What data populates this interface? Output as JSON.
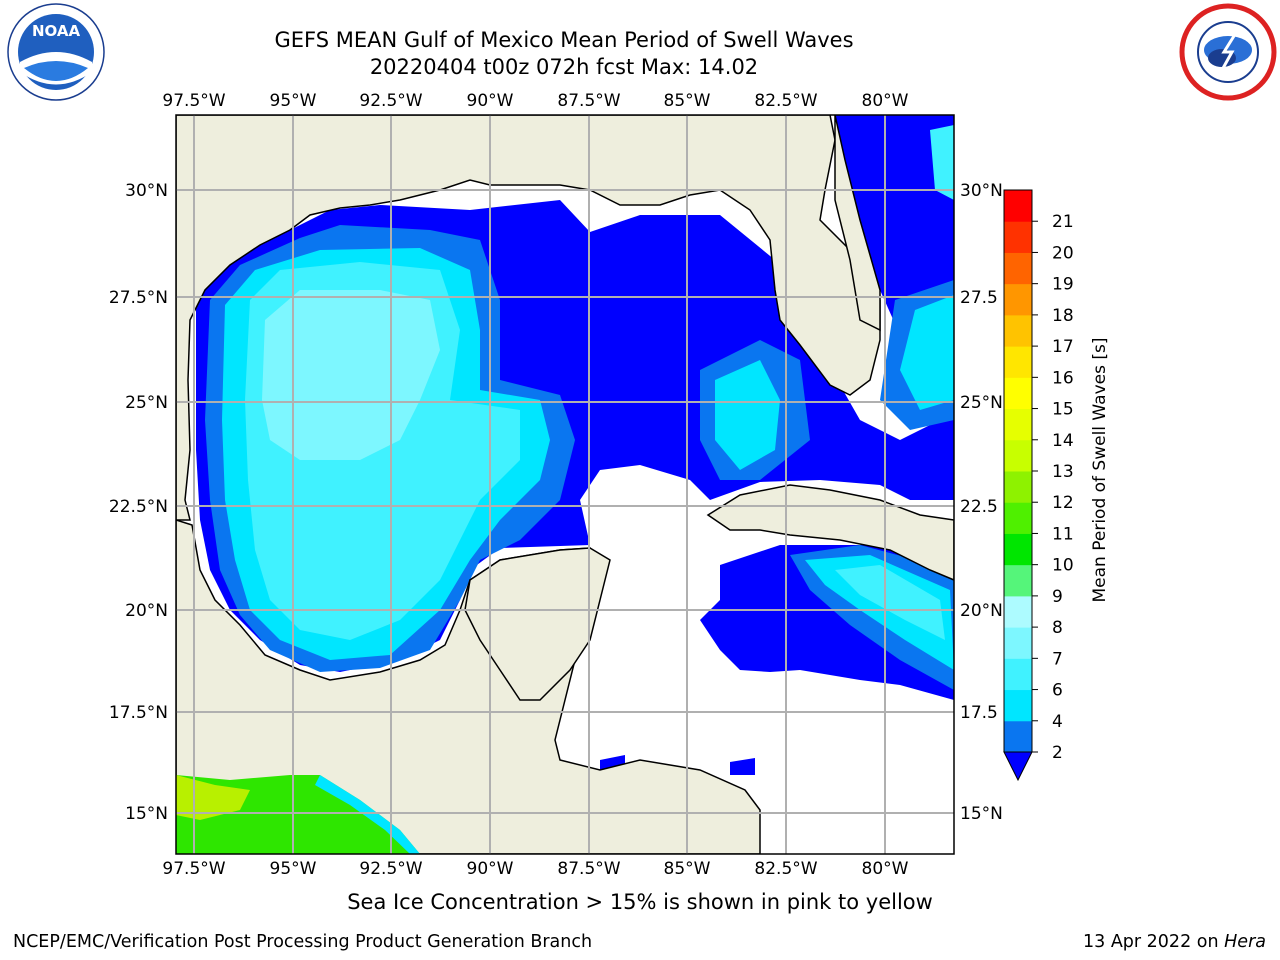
{
  "header": {
    "title": "GEFS MEAN Gulf of Mexico Mean Period of Swell Waves",
    "subtitle": "20220404 t00z 072h fcst   Max: 14.02"
  },
  "logos": {
    "left": "noaa-logo",
    "left_text": "NOAA",
    "right": "nws-logo"
  },
  "map": {
    "lon_labels": [
      "97.5°W",
      "95°W",
      "92.5°W",
      "90°W",
      "87.5°W",
      "85°W",
      "82.5°W",
      "80°W"
    ],
    "lat_labels_left": [
      "30°N",
      "27.5°N",
      "25°N",
      "22.5°N",
      "20°N",
      "17.5°N",
      "15°N"
    ],
    "lat_labels_right": [
      "30°N",
      "27.5",
      "25°N",
      "22.5",
      "20°N",
      "17.5",
      "15°N"
    ],
    "land_color": "#eeeedd",
    "ocean_no_data_color": "#ffffff",
    "grid_color": "#b0b0b0"
  },
  "colorbar": {
    "label": "Mean Period of Swell Waves [s]",
    "tick_labels": [
      "2",
      "4",
      "6",
      "7",
      "8",
      "9",
      "10",
      "11",
      "12",
      "13",
      "14",
      "15",
      "16",
      "17",
      "18",
      "19",
      "20",
      "21"
    ],
    "colors": [
      "#0a76f0",
      "#00e6ff",
      "#40f2ff",
      "#7df7ff",
      "#adfbff",
      "#55f57a",
      "#00e600",
      "#4ff000",
      "#8ef200",
      "#c8ff00",
      "#e6ff00",
      "#ffff00",
      "#ffe600",
      "#ffc300",
      "#ff9600",
      "#ff6400",
      "#ff3200",
      "#ff0000"
    ],
    "under_color": "#0000ff"
  },
  "footer": {
    "note": "Sea Ice Concentration > 15% is shown in pink to yellow",
    "left": "NCEP/EMC/Verification Post Processing Product Generation Branch",
    "right_date": "13 Apr 2022 on ",
    "right_machine": "Hera"
  }
}
